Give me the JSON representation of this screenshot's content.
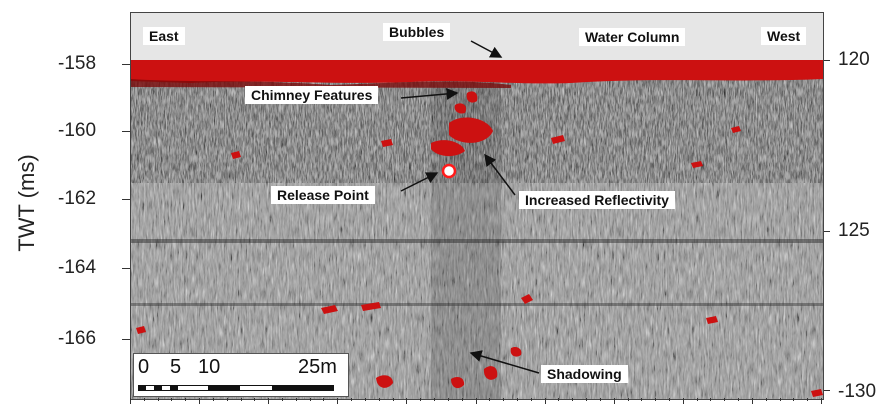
{
  "axis": {
    "ylabel": "TWT (ms)",
    "left_ticks": [
      "-158",
      "-160",
      "-162",
      "-164",
      "-166"
    ],
    "right_ticks": [
      "120",
      "125",
      "-130"
    ]
  },
  "annotations": {
    "east": "East",
    "west": "West",
    "bubbles": "Bubbles",
    "water_column": "Water Column",
    "chimney": "Chimney Features",
    "release_point": "Release Point",
    "increased_reflectivity": "Increased Reflectivity",
    "shadowing": "Shadowing"
  },
  "scale_bar": {
    "labels": [
      "0",
      "5",
      "10",
      "25m"
    ]
  },
  "colors": {
    "seabed_red": "#cc1111",
    "release_point_marker": "#ff1a1a"
  }
}
